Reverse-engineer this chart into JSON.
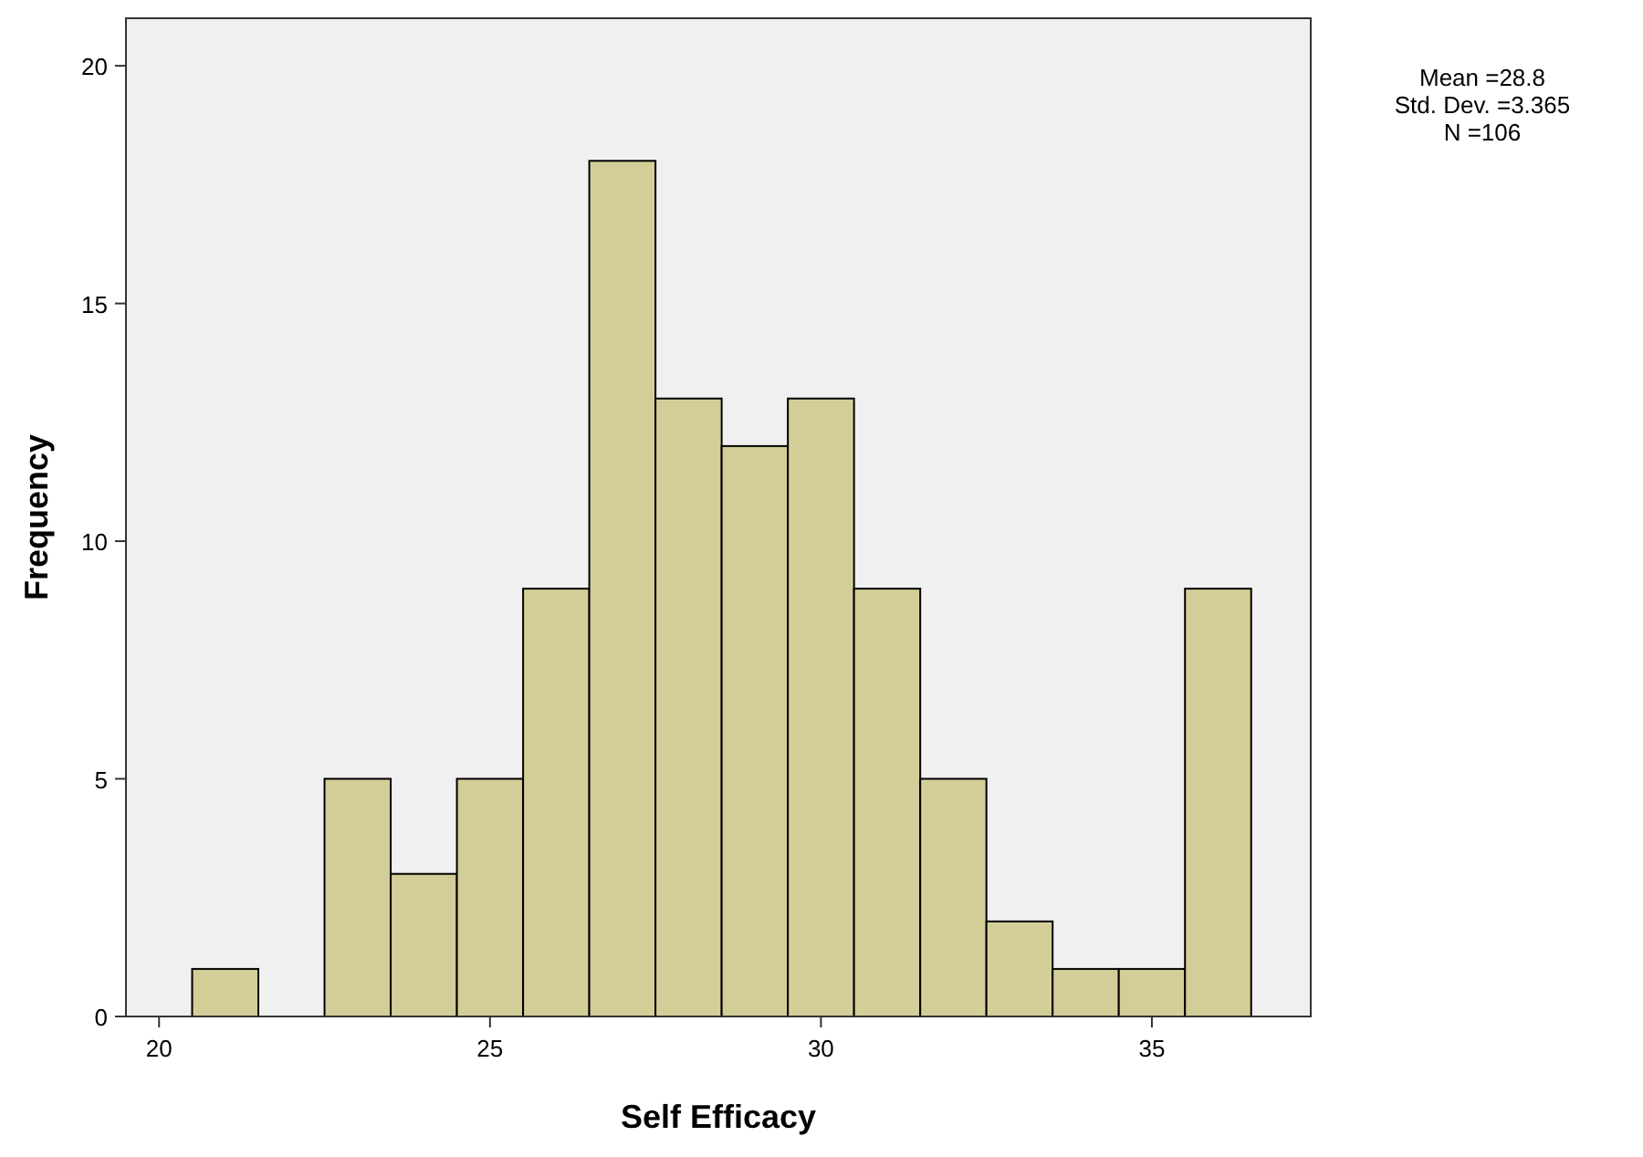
{
  "chart_data": {
    "type": "histogram",
    "xlabel": "Self Efficacy",
    "ylabel": "Frequency",
    "bins": [
      20.5,
      21.5,
      22.5,
      23.5,
      24.5,
      25.5,
      26.5,
      27.5,
      28.5,
      29.5,
      30.5,
      31.5,
      32.5,
      33.5,
      34.5,
      35.5,
      36.5
    ],
    "values": [
      1,
      0,
      5,
      3,
      5,
      9,
      18,
      13,
      12,
      13,
      9,
      5,
      2,
      1,
      1,
      9
    ],
    "color": "#d3ce97",
    "xlim": [
      19.5,
      37.4
    ],
    "xticks": [
      20,
      25,
      30,
      35
    ],
    "ylim": [
      0,
      21
    ],
    "yticks": [
      0,
      5,
      10,
      15,
      20
    ],
    "grid": false,
    "annotations": [
      "Mean =28.8",
      "Std. Dev. =3.365",
      "N =106"
    ]
  }
}
